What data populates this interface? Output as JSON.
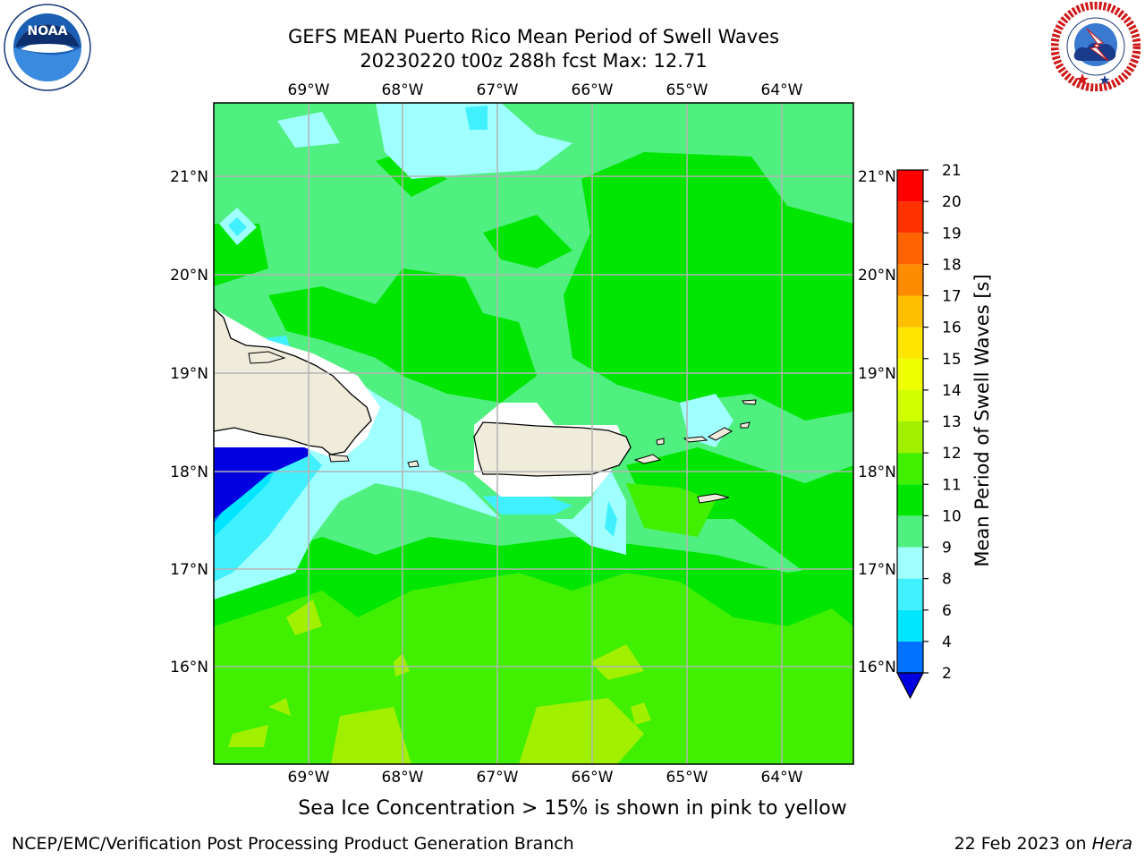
{
  "title_line1": "GEFS MEAN Puerto Rico Mean Period of Swell Waves",
  "title_line2": "20230220 t00z 288h fcst   Max: 12.71",
  "lon_labels": [
    "69°W",
    "68°W",
    "67°W",
    "66°W",
    "65°W",
    "64°W"
  ],
  "lat_labels": [
    "21°N",
    "20°N",
    "19°N",
    "18°N",
    "17°N",
    "16°N"
  ],
  "colorbar": {
    "label": "Mean Period of Swell Waves [s]",
    "ticks": [
      "21",
      "20",
      "19",
      "18",
      "17",
      "16",
      "15",
      "14",
      "13",
      "12",
      "11",
      "10",
      "9",
      "8",
      "6",
      "4",
      "2"
    ],
    "levels": [
      {
        "from": 2,
        "to": 4,
        "color": "#0072ff"
      },
      {
        "from": 4,
        "to": 6,
        "color": "#00e6ff"
      },
      {
        "from": 6,
        "to": 8,
        "color": "#40f0ff"
      },
      {
        "from": 8,
        "to": 9,
        "color": "#a0ffff"
      },
      {
        "from": 9,
        "to": 10,
        "color": "#50f080"
      },
      {
        "from": 10,
        "to": 11,
        "color": "#00e600"
      },
      {
        "from": 11,
        "to": 12,
        "color": "#40f000"
      },
      {
        "from": 12,
        "to": 13,
        "color": "#a0f000"
      },
      {
        "from": 13,
        "to": 14,
        "color": "#d0ff00"
      },
      {
        "from": 14,
        "to": 15,
        "color": "#f0ff00"
      },
      {
        "from": 15,
        "to": 16,
        "color": "#ffe600"
      },
      {
        "from": 16,
        "to": 17,
        "color": "#ffbe00"
      },
      {
        "from": 17,
        "to": 18,
        "color": "#ff8c00"
      },
      {
        "from": 18,
        "to": 19,
        "color": "#ff6400"
      },
      {
        "from": 19,
        "to": 20,
        "color": "#ff3200"
      },
      {
        "from": 20,
        "to": 21,
        "color": "#ff0000"
      }
    ],
    "under_color": "#0000e0"
  },
  "caption": "Sea Ice Concentration > 15% is shown in pink to yellow",
  "credit": "NCEP/EMC/Verification Post Processing Product Generation Branch",
  "date_prefix": "22 Feb 2023 on ",
  "date_host": "Hera",
  "noaa_logo": {
    "text": "NOAA",
    "ring_text": "NATIONAL OCEANIC AND ATMOSPHERIC ADMINISTRATION · U.S. DEPARTMENT OF COMMERCE"
  },
  "nws_logo": {
    "ring_text": "NATIONAL WEATHER SERVICE"
  },
  "colors": {
    "land": "#efecdc",
    "ocean_base": "#50f080",
    "coast": "#000000",
    "grid": "#b0b0b0",
    "undefined_area": "#0000e0"
  }
}
